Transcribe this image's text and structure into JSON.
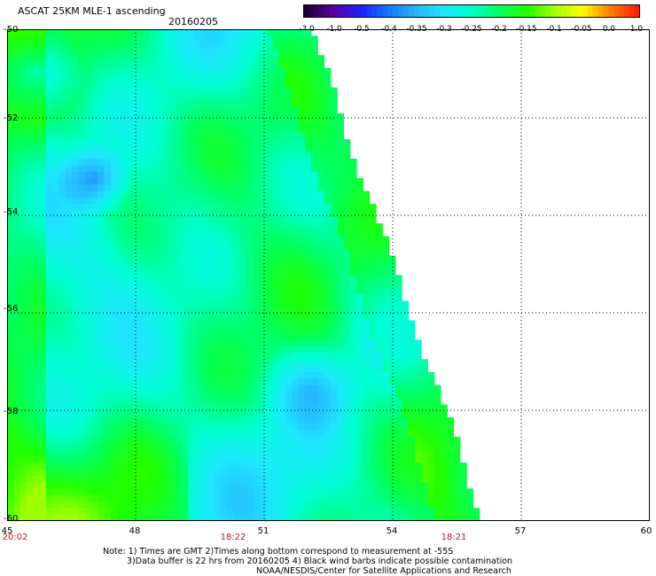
{
  "header": {
    "title": "ASCAT 25KM MLE-1 ascending",
    "date": "20160205"
  },
  "colorbar": {
    "ticks": [
      "-3.0",
      "-1.0",
      "-0.5",
      "-0.4",
      "-0.35",
      "-0.3",
      "-0.25",
      "-0.2",
      "-0.15",
      "-0.1",
      "-0.05",
      "0.0",
      "1.0"
    ],
    "colors": [
      "#1a0030",
      "#5a00a0",
      "#2020ff",
      "#1478ff",
      "#28b4ff",
      "#1ee6ff",
      "#00ffd0",
      "#00ff60",
      "#20ff00",
      "#a0ff00",
      "#ffff00",
      "#ff8000",
      "#ff2000"
    ]
  },
  "map": {
    "y_labels": [
      "-50",
      "-52",
      "-54",
      "-56",
      "-58",
      "-60"
    ],
    "x_labels": [
      "45",
      "48",
      "51",
      "54",
      "57",
      "60"
    ],
    "times": [
      "20:02",
      "18:22",
      "18:21"
    ],
    "lon_range": [
      45,
      60
    ],
    "lat_range": [
      -50,
      -60
    ]
  },
  "notes": {
    "line1": "Note: 1) Times are GMT 2)Times along bottom correspond to measurement at -55S",
    "line2": "3)Data buffer is 22 hrs from 20160205 4) Black wind barbs indicate possible contamination",
    "line3": "NOAA/NESDIS/Center for Satellite Applications and Research"
  }
}
